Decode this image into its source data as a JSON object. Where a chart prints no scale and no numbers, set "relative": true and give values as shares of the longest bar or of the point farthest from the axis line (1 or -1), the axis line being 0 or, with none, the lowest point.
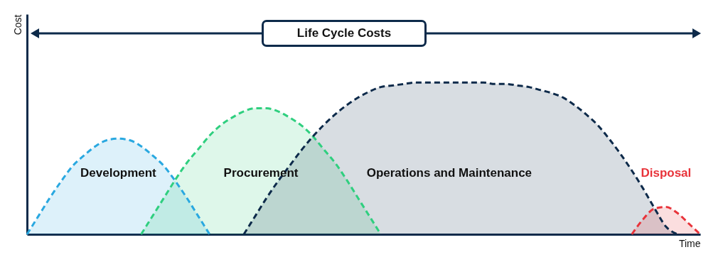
{
  "chart_data": {
    "type": "area",
    "relative": true,
    "xlabel": "Time",
    "ylabel": "Cost",
    "line_style": "dashed",
    "tick_labels": false,
    "annotations": [
      "Life Cycle Costs"
    ],
    "categories": [
      null,
      null,
      null,
      null,
      null,
      null,
      null,
      null,
      null,
      null,
      null,
      null,
      null,
      null,
      null,
      null,
      null,
      null,
      null,
      null,
      null,
      null,
      null,
      null,
      null,
      null,
      null,
      null,
      null,
      null,
      null,
      null,
      null,
      null,
      null,
      null,
      null,
      null,
      null,
      null,
      null,
      null,
      null,
      null,
      null,
      null,
      null,
      null,
      null,
      null,
      null,
      null,
      null,
      null,
      null,
      null,
      null,
      null,
      null,
      null
    ],
    "series": [
      {
        "name": "Development",
        "color": "#29a8e0",
        "values": [
          0,
          0.12,
          0.24,
          0.35,
          0.45,
          0.52,
          0.58,
          0.62,
          0.63,
          0.62,
          0.58,
          0.52,
          0.45,
          0.35,
          0.24,
          0.12,
          0,
          null,
          null,
          null,
          null,
          null,
          null,
          null,
          null,
          null,
          null,
          null,
          null,
          null,
          null,
          null,
          null,
          null,
          null,
          null,
          null,
          null,
          null,
          null,
          null,
          null,
          null,
          null,
          null,
          null,
          null,
          null,
          null,
          null,
          null,
          null,
          null,
          null,
          null,
          null,
          null,
          null,
          null,
          null
        ]
      },
      {
        "name": "Procurement",
        "color": "#2fcf7f",
        "values": [
          null,
          null,
          null,
          null,
          null,
          null,
          null,
          null,
          null,
          null,
          0,
          0.12,
          0.24,
          0.36,
          0.47,
          0.56,
          0.65,
          0.72,
          0.77,
          0.81,
          0.83,
          0.83,
          0.81,
          0.77,
          0.72,
          0.65,
          0.56,
          0.47,
          0.36,
          0.24,
          0.12,
          0,
          null,
          null,
          null,
          null,
          null,
          null,
          null,
          null,
          null,
          null,
          null,
          null,
          null,
          null,
          null,
          null,
          null,
          null,
          null,
          null,
          null,
          null,
          null,
          null,
          null,
          null,
          null,
          null
        ]
      },
      {
        "name": "Operations and Maintenance",
        "color": "#0d2a4a",
        "values": [
          null,
          null,
          null,
          null,
          null,
          null,
          null,
          null,
          null,
          null,
          null,
          null,
          null,
          null,
          null,
          null,
          null,
          null,
          null,
          0,
          0.12,
          0.24,
          0.35,
          0.45,
          0.55,
          0.64,
          0.72,
          0.79,
          0.85,
          0.9,
          0.94,
          0.97,
          0.98,
          0.99,
          1,
          1,
          1,
          1,
          1,
          1,
          1,
          0.99,
          0.99,
          0.98,
          0.97,
          0.95,
          0.93,
          0.9,
          0.85,
          0.79,
          0.72,
          0.63,
          0.53,
          0.42,
          0.3,
          0.17,
          0.05,
          0,
          null,
          null
        ]
      },
      {
        "name": "Disposal",
        "color": "#e8333a",
        "values": [
          null,
          null,
          null,
          null,
          null,
          null,
          null,
          null,
          null,
          null,
          null,
          null,
          null,
          null,
          null,
          null,
          null,
          null,
          null,
          null,
          null,
          null,
          null,
          null,
          null,
          null,
          null,
          null,
          null,
          null,
          null,
          null,
          null,
          null,
          null,
          null,
          null,
          null,
          null,
          null,
          null,
          null,
          null,
          null,
          null,
          null,
          null,
          null,
          null,
          null,
          null,
          null,
          null,
          0,
          0.1,
          0.17,
          0.18,
          0.14,
          0.07,
          0
        ]
      }
    ]
  }
}
